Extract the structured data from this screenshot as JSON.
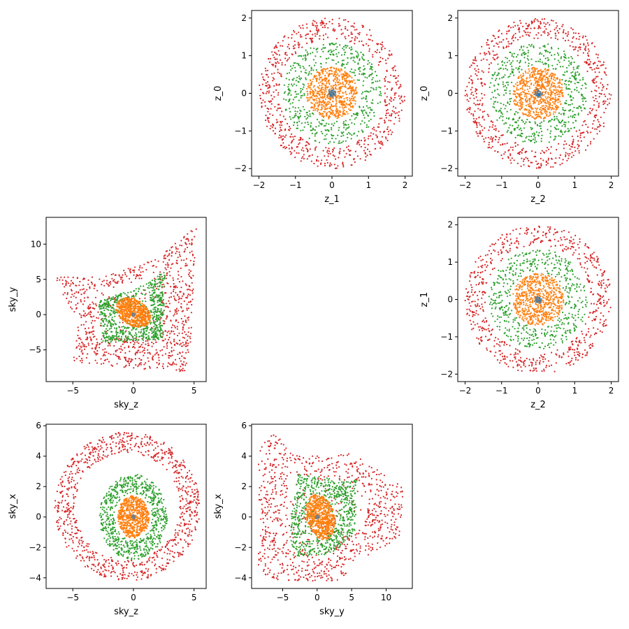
{
  "chart_data": [
    {
      "type": "scatter",
      "title": "",
      "xlabel": "z_1",
      "ylabel": "z_0",
      "xlim": [
        -2.2,
        2.2
      ],
      "ylim": [
        -2.2,
        2.2
      ],
      "xticks": [
        -2,
        -1,
        0,
        1,
        2
      ],
      "yticks": [
        -2,
        -1,
        0,
        1,
        2
      ],
      "grid": false,
      "shape": "circles",
      "series": [
        {
          "color": "#d62728",
          "radius_min": 1.45,
          "radius_max": 2.0,
          "count": 650
        },
        {
          "color": "#2ca02c",
          "radius_min": 0.75,
          "radius_max": 1.35,
          "count": 500
        },
        {
          "color": "#ff7f0e",
          "radius_min": 0.0,
          "radius_max": 0.7,
          "count": 650
        },
        {
          "color": "#1f77b4",
          "radius_min": 0.0,
          "radius_max": 0.08,
          "count": 25
        },
        {
          "color": "#7f7f7f",
          "radius_min": 0.0,
          "radius_max": 0.12,
          "count": 25
        }
      ]
    },
    {
      "type": "scatter",
      "title": "",
      "xlabel": "z_2",
      "ylabel": "z_0",
      "xlim": [
        -2.2,
        2.2
      ],
      "ylim": [
        -2.2,
        2.2
      ],
      "xticks": [
        -2,
        -1,
        0,
        1,
        2
      ],
      "yticks": [
        -2,
        -1,
        0,
        1,
        2
      ],
      "grid": false,
      "shape": "circles",
      "series": [
        {
          "color": "#d62728",
          "radius_min": 1.45,
          "radius_max": 2.0,
          "count": 650
        },
        {
          "color": "#2ca02c",
          "radius_min": 0.75,
          "radius_max": 1.35,
          "count": 500
        },
        {
          "color": "#ff7f0e",
          "radius_min": 0.0,
          "radius_max": 0.7,
          "count": 650
        },
        {
          "color": "#1f77b4",
          "radius_min": 0.0,
          "radius_max": 0.08,
          "count": 25
        },
        {
          "color": "#7f7f7f",
          "radius_min": 0.0,
          "radius_max": 0.12,
          "count": 25
        }
      ]
    },
    {
      "type": "scatter",
      "title": "",
      "xlabel": "sky_z",
      "ylabel": "sky_y",
      "xlim": [
        -7.2,
        6.0
      ],
      "ylim": [
        -9.5,
        13.8
      ],
      "xticks": [
        -5,
        0,
        5
      ],
      "yticks": [
        -5,
        0,
        5,
        10
      ],
      "grid": false,
      "shape": "warped",
      "series": [
        {
          "color": "#d62728",
          "polygon": [
            [
              -6.6,
              5.3
            ],
            [
              -2.5,
              5.5
            ],
            [
              2.0,
              8.0
            ],
            [
              5.2,
              12.6
            ],
            [
              4.6,
              -8.3
            ],
            [
              -5.0,
              -6.8
            ],
            [
              -4.5,
              -1.0
            ]
          ],
          "count": 900
        },
        {
          "color": "#2ca02c",
          "polygon": [
            [
              -2.9,
              2.2
            ],
            [
              0.0,
              3.5
            ],
            [
              2.6,
              6.2
            ],
            [
              2.5,
              -3.5
            ],
            [
              -2.5,
              -4.0
            ]
          ],
          "count": 700
        },
        {
          "color": "#ff7f0e",
          "ellipse": {
            "cx": 0.0,
            "cy": 0.3,
            "rx": 1.3,
            "ry": 2.2,
            "tilt": 0.35
          },
          "count": 650
        },
        {
          "color": "#1f77b4",
          "ellipse": {
            "cx": 0.0,
            "cy": 0.0,
            "rx": 0.1,
            "ry": 0.2,
            "tilt": 0
          },
          "count": 25
        },
        {
          "color": "#7f7f7f",
          "ellipse": {
            "cx": 0.0,
            "cy": 0.0,
            "rx": 0.15,
            "ry": 0.25,
            "tilt": 0
          },
          "count": 25
        }
      ]
    },
    {
      "type": "scatter",
      "title": "",
      "xlabel": "z_2",
      "ylabel": "z_1",
      "xlim": [
        -2.2,
        2.2
      ],
      "ylim": [
        -2.2,
        2.2
      ],
      "xticks": [
        -2,
        -1,
        0,
        1,
        2
      ],
      "yticks": [
        -2,
        -1,
        0,
        1,
        2
      ],
      "grid": false,
      "shape": "circles",
      "series": [
        {
          "color": "#d62728",
          "radius_min": 1.45,
          "radius_max": 2.0,
          "count": 650
        },
        {
          "color": "#2ca02c",
          "radius_min": 0.75,
          "radius_max": 1.35,
          "count": 500
        },
        {
          "color": "#ff7f0e",
          "radius_min": 0.0,
          "radius_max": 0.7,
          "count": 650
        },
        {
          "color": "#1f77b4",
          "radius_min": 0.0,
          "radius_max": 0.08,
          "count": 25
        },
        {
          "color": "#7f7f7f",
          "radius_min": 0.0,
          "radius_max": 0.12,
          "count": 25
        }
      ]
    },
    {
      "type": "scatter",
      "title": "",
      "xlabel": "sky_z",
      "ylabel": "sky_x",
      "xlim": [
        -7.2,
        6.0
      ],
      "ylim": [
        -4.7,
        6.1
      ],
      "xticks": [
        -5,
        0,
        5
      ],
      "yticks": [
        -4,
        -2,
        0,
        2,
        4,
        6
      ],
      "grid": false,
      "shape": "ellipses",
      "series": [
        {
          "color": "#d62728",
          "ellipse": {
            "cx": -0.5,
            "cy": 0.7,
            "rx": 6.0,
            "ry": 4.9,
            "tilt": 0
          },
          "inner_frac": 0.72,
          "count": 900
        },
        {
          "color": "#2ca02c",
          "ellipse": {
            "cx": 0.0,
            "cy": 0.0,
            "rx": 2.8,
            "ry": 2.8,
            "tilt": 0
          },
          "inner_frac": 0.55,
          "count": 700
        },
        {
          "color": "#ff7f0e",
          "ellipse": {
            "cx": 0.0,
            "cy": 0.0,
            "rx": 1.3,
            "ry": 1.4,
            "tilt": 0
          },
          "inner_frac": 0.0,
          "count": 650
        },
        {
          "color": "#1f77b4",
          "ellipse": {
            "cx": 0.0,
            "cy": 0.0,
            "rx": 0.1,
            "ry": 0.1,
            "tilt": 0
          },
          "inner_frac": 0.0,
          "count": 25
        },
        {
          "color": "#7f7f7f",
          "ellipse": {
            "cx": 0.0,
            "cy": 0.0,
            "rx": 0.15,
            "ry": 0.15,
            "tilt": 0
          },
          "inner_frac": 0.0,
          "count": 25
        }
      ]
    },
    {
      "type": "scatter",
      "title": "",
      "xlabel": "sky_y",
      "ylabel": "sky_x",
      "xlim": [
        -9.5,
        13.8
      ],
      "ylim": [
        -4.7,
        6.1
      ],
      "xticks": [
        -5,
        0,
        5,
        10
      ],
      "yticks": [
        -4,
        -2,
        0,
        2,
        4,
        6
      ],
      "grid": false,
      "shape": "warped",
      "series": [
        {
          "color": "#d62728",
          "polygon": [
            [
              -8.5,
              4.5
            ],
            [
              -6.5,
              5.5
            ],
            [
              -2.0,
              4.0
            ],
            [
              5.0,
              4.2
            ],
            [
              12.5,
              2.0
            ],
            [
              12.0,
              -1.5
            ],
            [
              6.0,
              -2.8
            ],
            [
              3.5,
              -4.2
            ],
            [
              -6.0,
              -4.2
            ],
            [
              -8.5,
              -3.5
            ]
          ],
          "count": 900
        },
        {
          "color": "#2ca02c",
          "polygon": [
            [
              -2.8,
              2.8
            ],
            [
              5.8,
              2.4
            ],
            [
              5.5,
              -1.0
            ],
            [
              2.0,
              -2.5
            ],
            [
              -3.5,
              -2.6
            ],
            [
              -4.0,
              -1.0
            ]
          ],
          "count": 700
        },
        {
          "color": "#ff7f0e",
          "ellipse": {
            "cx": 0.5,
            "cy": 0.0,
            "rx": 2.2,
            "ry": 1.4,
            "tilt": -0.3
          },
          "count": 650
        },
        {
          "color": "#1f77b4",
          "ellipse": {
            "cx": 0.0,
            "cy": 0.0,
            "rx": 0.2,
            "ry": 0.1,
            "tilt": 0
          },
          "count": 25
        },
        {
          "color": "#7f7f7f",
          "ellipse": {
            "cx": 0.0,
            "cy": 0.0,
            "rx": 0.25,
            "ry": 0.15,
            "tilt": 0
          },
          "count": 25
        }
      ]
    }
  ]
}
